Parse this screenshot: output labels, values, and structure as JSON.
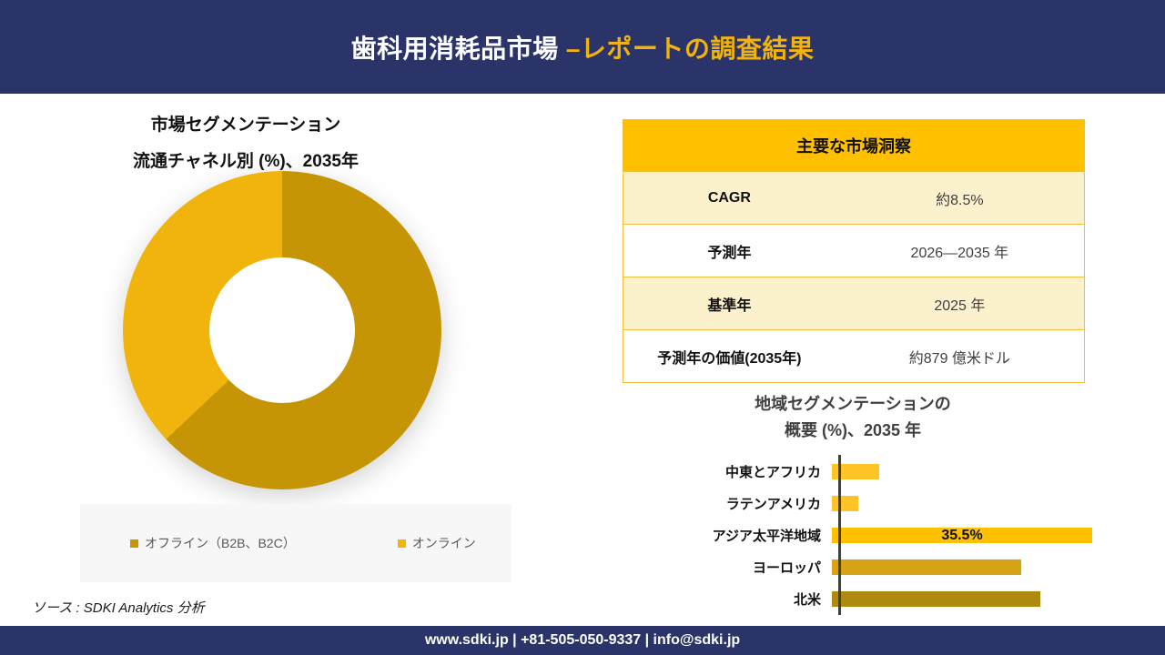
{
  "header": {
    "title_white": "歯科用消耗品市場 ",
    "title_gold": "–レポートの調査結果"
  },
  "donut_section": {
    "title_line1": "市場セグメンテーション",
    "title_line2": "流通チャネル別 (%)、2035年"
  },
  "insights_table": {
    "header": "主要な市場洞察",
    "rows": [
      {
        "label": "CAGR",
        "value": "約8.5%"
      },
      {
        "label": "予測年",
        "value": "2026—2035 年"
      },
      {
        "label": "基準年",
        "value": "2025 年"
      },
      {
        "label": "予測年の価値(2035年)",
        "value": "約879 億米ドル"
      }
    ]
  },
  "regional_section": {
    "title_line1": "地域セグメンテーションの",
    "title_line2": "概要 (%)、2035 年"
  },
  "source": "ソース : SDKI Analytics 分析",
  "footer": "www.sdki.jp | +81-505-050-9337 | info@sdki.jp",
  "colors": {
    "navy": "#2B3468",
    "title_gold": "#F2B30E",
    "table_header_gold": "#FFC000",
    "table_row_cream": "#FCF1CD",
    "donut_offline": "#C69506",
    "donut_online": "#F0B40C"
  },
  "chart_data": [
    {
      "type": "pie",
      "subtype": "donut",
      "title": "市場セグメンテーション 流通チャネル別 (%)、2035年",
      "legend_position": "bottom",
      "series": [
        {
          "name": "オフライン（B2B、B2C）",
          "value": 63,
          "color": "#C69506"
        },
        {
          "name": "オンライン",
          "value": 37,
          "color": "#F0B40C"
        }
      ]
    },
    {
      "type": "bar",
      "orientation": "horizontal",
      "title": "地域セグメンテーションの概要 (%)、2035 年",
      "categories": [
        "中東とアフリカ",
        "ラテンアメリカ",
        "アジア太平洋地域",
        "ヨーロッパ",
        "北米"
      ],
      "values": [
        6.5,
        3.6,
        35.5,
        25.8,
        28.4
      ],
      "value_labels": [
        "",
        "",
        "35.5%",
        "",
        ""
      ],
      "colors": [
        "#FFC526",
        "#FFC526",
        "#FFC000",
        "#D9A414",
        "#AE8A10"
      ],
      "xlim": [
        0,
        40
      ],
      "grid": false,
      "note_only_labeled_value": "35.5%"
    }
  ]
}
